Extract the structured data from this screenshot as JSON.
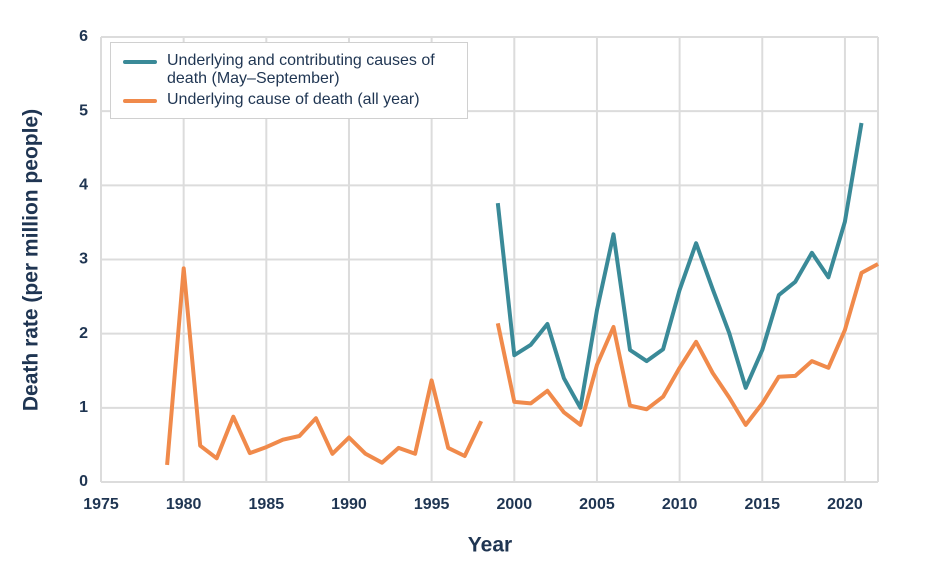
{
  "chart_data": {
    "type": "line",
    "xlabel": "Year",
    "ylabel": "Death rate (per million people)",
    "xlim": [
      1975,
      2022
    ],
    "xticks": [
      1975,
      1980,
      1985,
      1990,
      1995,
      2000,
      2005,
      2010,
      2015,
      2020
    ],
    "ylim": [
      0,
      6
    ],
    "yticks": [
      0,
      1,
      2,
      3,
      4,
      5,
      6
    ],
    "grid": true,
    "legend": "upper-left",
    "series": [
      {
        "name": "Underlying and contributing causes of death (May–September)",
        "color": "#3a8a98",
        "x": [
          1999,
          2000,
          2001,
          2002,
          2003,
          2004,
          2005,
          2006,
          2007,
          2008,
          2009,
          2010,
          2011,
          2012,
          2013,
          2014,
          2015,
          2016,
          2017,
          2018,
          2019,
          2020,
          2021
        ],
        "values": [
          3.76,
          1.71,
          1.85,
          2.13,
          1.4,
          1.0,
          2.32,
          3.34,
          1.78,
          1.63,
          1.79,
          2.59,
          3.22,
          2.6,
          2.01,
          1.27,
          1.78,
          2.52,
          2.7,
          3.09,
          2.76,
          3.51,
          4.84
        ]
      },
      {
        "name": "Underlying cause of death (all year)",
        "color": "#f08a4b",
        "x": [
          1979,
          1980,
          1981,
          1982,
          1983,
          1984,
          1985,
          1986,
          1987,
          1988,
          1989,
          1990,
          1991,
          1992,
          1993,
          1994,
          1995,
          1996,
          1997,
          1998,
          null,
          1999,
          2000,
          2001,
          2002,
          2003,
          2004,
          2005,
          2006,
          2007,
          2008,
          2009,
          2010,
          2011,
          2012,
          2013,
          2014,
          2015,
          2016,
          2017,
          2018,
          2019,
          2020,
          2021,
          2022
        ],
        "values": [
          0.23,
          2.88,
          0.49,
          0.32,
          0.88,
          0.39,
          0.47,
          0.57,
          0.62,
          0.86,
          0.38,
          0.6,
          0.38,
          0.26,
          0.46,
          0.38,
          1.37,
          0.46,
          0.35,
          0.82,
          null,
          2.14,
          1.08,
          1.06,
          1.23,
          0.94,
          0.77,
          1.58,
          2.09,
          1.03,
          0.98,
          1.15,
          1.54,
          1.89,
          1.47,
          1.14,
          0.77,
          1.06,
          1.42,
          1.43,
          1.63,
          1.54,
          2.05,
          2.82,
          2.94
        ]
      }
    ]
  }
}
